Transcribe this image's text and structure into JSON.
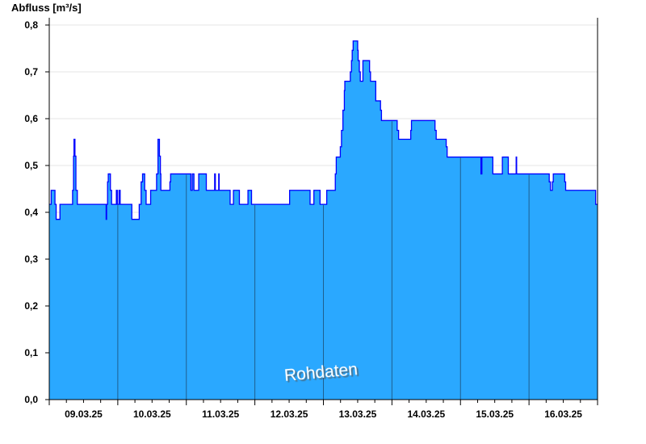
{
  "chart_data": {
    "type": "area",
    "title": "",
    "ylabel": "Abfluss [m³/s]",
    "xlabel": "",
    "watermark": "Rohdaten",
    "xlim": [
      "2025-03-09T00:00",
      "2025-03-17T00:00"
    ],
    "ylim": [
      0,
      0.8
    ],
    "yticks": [
      0,
      0.1,
      0.2,
      0.3,
      0.4,
      0.5,
      0.6,
      0.7,
      0.8
    ],
    "ytick_labels": [
      "0,0",
      "0,1",
      "0,2",
      "0,3",
      "0,4",
      "0,5",
      "0,6",
      "0,7",
      "0,8"
    ],
    "xtick_labels": [
      "09.03.25",
      "10.03.25",
      "11.03.25",
      "12.03.25",
      "13.03.25",
      "14.03.25",
      "15.03.25",
      "16.03.25"
    ],
    "grid": "horizontal",
    "step": true,
    "colors": {
      "fill": "#2aa8ff",
      "line": "#0000ff",
      "grid": "#e6e6e6",
      "day_line": "#1f5f8f"
    },
    "series": [
      {
        "points": [
          [
            "2025-03-09T00:00",
            0.417
          ],
          [
            "2025-03-09T00:40",
            0.447
          ],
          [
            "2025-03-09T02:00",
            0.417
          ],
          [
            "2025-03-09T02:25",
            0.385
          ],
          [
            "2025-03-09T03:45",
            0.417
          ],
          [
            "2025-03-09T08:10",
            0.447
          ],
          [
            "2025-03-09T08:30",
            0.52
          ],
          [
            "2025-03-09T08:40",
            0.556
          ],
          [
            "2025-03-09T09:00",
            0.52
          ],
          [
            "2025-03-09T09:20",
            0.447
          ],
          [
            "2025-03-09T09:50",
            0.417
          ],
          [
            "2025-03-09T19:55",
            0.385
          ],
          [
            "2025-03-09T20:05",
            0.417
          ],
          [
            "2025-03-09T20:25",
            0.465
          ],
          [
            "2025-03-09T20:40",
            0.482
          ],
          [
            "2025-03-09T21:25",
            0.447
          ],
          [
            "2025-03-09T21:50",
            0.417
          ],
          [
            "2025-03-09T23:30",
            0.447
          ],
          [
            "2025-03-09T23:50",
            0.417
          ],
          [
            "2025-03-10T00:25",
            0.447
          ],
          [
            "2025-03-10T00:50",
            0.417
          ],
          [
            "2025-03-10T04:55",
            0.385
          ],
          [
            "2025-03-10T07:30",
            0.417
          ],
          [
            "2025-03-10T08:10",
            0.465
          ],
          [
            "2025-03-10T08:40",
            0.482
          ],
          [
            "2025-03-10T09:25",
            0.447
          ],
          [
            "2025-03-10T09:55",
            0.417
          ],
          [
            "2025-03-10T11:30",
            0.447
          ],
          [
            "2025-03-10T13:35",
            0.482
          ],
          [
            "2025-03-10T14:05",
            0.556
          ],
          [
            "2025-03-10T14:35",
            0.52
          ],
          [
            "2025-03-10T14:55",
            0.482
          ],
          [
            "2025-03-10T15:05",
            0.447
          ],
          [
            "2025-03-10T18:15",
            0.465
          ],
          [
            "2025-03-10T18:30",
            0.482
          ],
          [
            "2025-03-11T01:35",
            0.447
          ],
          [
            "2025-03-11T02:05",
            0.482
          ],
          [
            "2025-03-11T02:40",
            0.447
          ],
          [
            "2025-03-11T04:20",
            0.482
          ],
          [
            "2025-03-11T07:00",
            0.447
          ],
          [
            "2025-03-11T09:55",
            0.482
          ],
          [
            "2025-03-11T10:10",
            0.447
          ],
          [
            "2025-03-11T11:20",
            0.482
          ],
          [
            "2025-03-11T11:30",
            0.447
          ],
          [
            "2025-03-11T15:20",
            0.417
          ],
          [
            "2025-03-11T16:30",
            0.447
          ],
          [
            "2025-03-11T18:35",
            0.417
          ],
          [
            "2025-03-11T21:35",
            0.447
          ],
          [
            "2025-03-11T22:50",
            0.417
          ],
          [
            "2025-03-12T12:10",
            0.447
          ],
          [
            "2025-03-12T19:20",
            0.417
          ],
          [
            "2025-03-12T20:40",
            0.447
          ],
          [
            "2025-03-12T22:50",
            0.417
          ],
          [
            "2025-03-13T01:10",
            0.447
          ],
          [
            "2025-03-13T04:10",
            0.482
          ],
          [
            "2025-03-13T04:30",
            0.518
          ],
          [
            "2025-03-13T05:55",
            0.54
          ],
          [
            "2025-03-13T06:20",
            0.575
          ],
          [
            "2025-03-13T06:50",
            0.618
          ],
          [
            "2025-03-13T07:20",
            0.66
          ],
          [
            "2025-03-13T07:30",
            0.68
          ],
          [
            "2025-03-13T09:25",
            0.7
          ],
          [
            "2025-03-13T09:50",
            0.724
          ],
          [
            "2025-03-13T10:05",
            0.746
          ],
          [
            "2025-03-13T10:25",
            0.766
          ],
          [
            "2025-03-13T12:00",
            0.746
          ],
          [
            "2025-03-13T12:10",
            0.724
          ],
          [
            "2025-03-13T12:35",
            0.7
          ],
          [
            "2025-03-13T12:55",
            0.68
          ],
          [
            "2025-03-13T13:50",
            0.724
          ],
          [
            "2025-03-13T16:10",
            0.7
          ],
          [
            "2025-03-13T16:30",
            0.68
          ],
          [
            "2025-03-13T18:20",
            0.638
          ],
          [
            "2025-03-13T20:00",
            0.618
          ],
          [
            "2025-03-13T20:20",
            0.596
          ],
          [
            "2025-03-14T01:50",
            0.575
          ],
          [
            "2025-03-14T02:20",
            0.556
          ],
          [
            "2025-03-14T06:35",
            0.575
          ],
          [
            "2025-03-14T06:50",
            0.596
          ],
          [
            "2025-03-14T15:05",
            0.575
          ],
          [
            "2025-03-14T15:30",
            0.556
          ],
          [
            "2025-03-14T19:00",
            0.54
          ],
          [
            "2025-03-14T19:20",
            0.518
          ],
          [
            "2025-03-15T07:10",
            0.482
          ],
          [
            "2025-03-15T07:30",
            0.518
          ],
          [
            "2025-03-15T11:20",
            0.482
          ],
          [
            "2025-03-15T14:40",
            0.518
          ],
          [
            "2025-03-15T16:45",
            0.482
          ],
          [
            "2025-03-15T19:30",
            0.518
          ],
          [
            "2025-03-15T19:40",
            0.482
          ],
          [
            "2025-03-16T07:05",
            0.465
          ],
          [
            "2025-03-16T07:30",
            0.447
          ],
          [
            "2025-03-16T08:10",
            0.465
          ],
          [
            "2025-03-16T08:30",
            0.482
          ],
          [
            "2025-03-16T12:30",
            0.465
          ],
          [
            "2025-03-16T12:50",
            0.447
          ],
          [
            "2025-03-16T23:20",
            0.417
          ]
        ]
      }
    ]
  }
}
